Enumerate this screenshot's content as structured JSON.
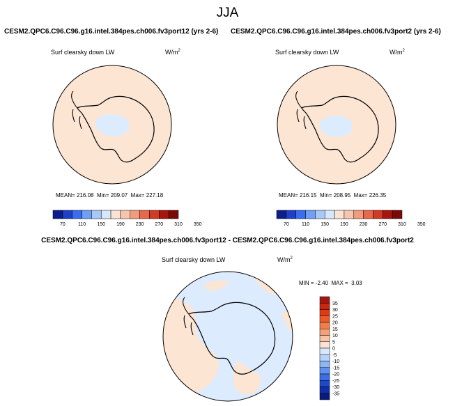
{
  "header": {
    "season": "JJA"
  },
  "panels": [
    {
      "case_title": "CESM2.QPC6.C96.C96.g16.intel.384pes.ch006.fv3port12 (yrs 2-6)",
      "variable": "Surf clearsky down LW",
      "units_base": "W/m",
      "units_exp": "2",
      "stats": {
        "mean_label": "MEAN=",
        "mean": "216.08",
        "min_label": "Min=",
        "min": "209.07",
        "max_label": "Max=",
        "max": "227.18"
      }
    },
    {
      "case_title": "CESM2.QPC6.C96.C96.g16.intel.384pes.ch006.fv3port2 (yrs 2-6)",
      "variable": "Surf clearsky down LW",
      "units_base": "W/m",
      "units_exp": "2",
      "stats": {
        "mean_label": "MEAN=",
        "mean": "216.15",
        "min_label": "Min=",
        "min": "208.95",
        "max_label": "Max=",
        "max": "226.35"
      }
    }
  ],
  "horizontal_colorbar": {
    "labels": [
      "70",
      "110",
      "150",
      "190",
      "230",
      "270",
      "310",
      "350"
    ],
    "colors": [
      "#0a1f8c",
      "#1f3fc8",
      "#3b6df0",
      "#6f9ff6",
      "#a8c8f8",
      "#d8e8fc",
      "#fbe3d4",
      "#f7c5ad",
      "#f29a7c",
      "#e8684c",
      "#cf3b24",
      "#a6160f",
      "#7a0a06"
    ]
  },
  "difference": {
    "title": "CESM2.QPC6.C96.C96.g16.intel.384pes.ch006.fv3port12 - CESM2.QPC6.C96.C96.g16.intel.384pes.ch006.fv3port2",
    "variable": "Surf clearsky down LW",
    "units_base": "W/m",
    "units_exp": "2",
    "stats": {
      "min_label": "MIN =",
      "min": "-2.40",
      "max_label": "MAX =",
      "max": "3.03"
    },
    "colorbar": {
      "labels": [
        "35",
        "30",
        "25",
        "20",
        "15",
        "10",
        "5",
        "0",
        "-5",
        "-10",
        "-15",
        "-20",
        "-25",
        "-30",
        "-35"
      ],
      "colors": [
        "#a6160f",
        "#c8260f",
        "#e03a14",
        "#ec5a2a",
        "#f27c4c",
        "#f6a079",
        "#f9c3a6",
        "#fbe3d4",
        "#d8e8fc",
        "#b4d2fa",
        "#8cb6f6",
        "#5f92f0",
        "#3a6ee6",
        "#2048cc",
        "#102ea8",
        "#0a1a7a"
      ]
    }
  },
  "colors": {
    "warm_fill": "#fde5d4",
    "cool_fill": "#dcebfd",
    "coastline": "#000000"
  }
}
